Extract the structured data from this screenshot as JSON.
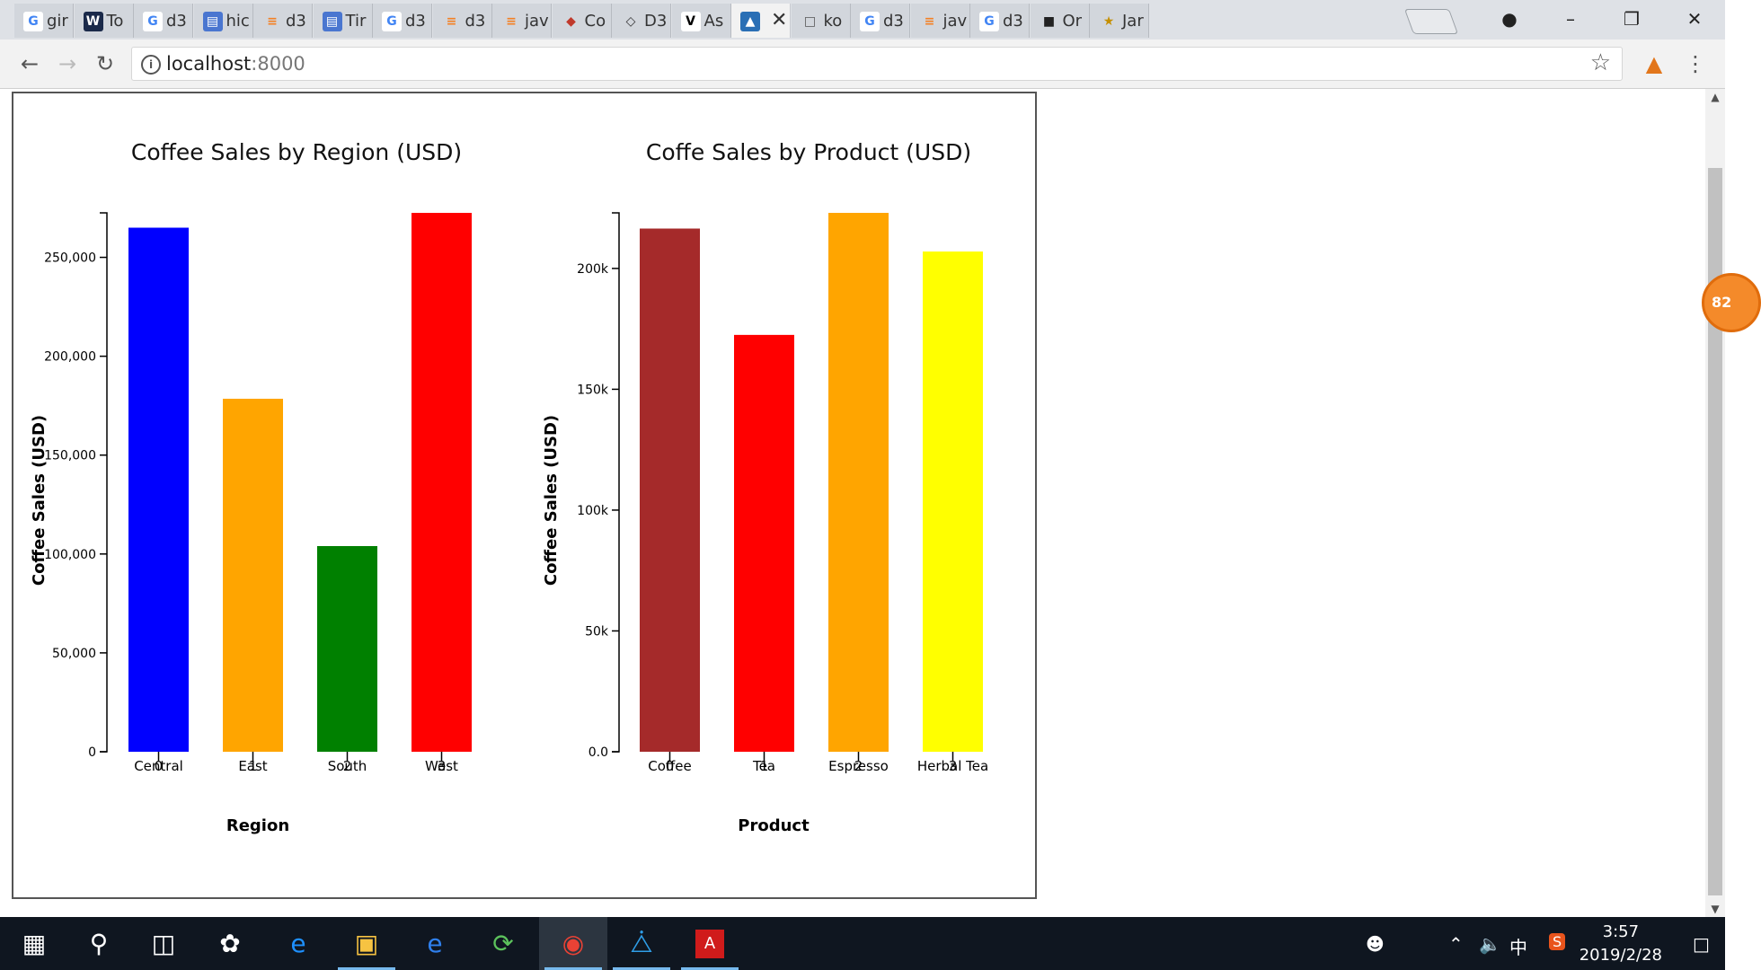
{
  "browser": {
    "tabs": [
      {
        "label": "gir",
        "icon": "google-icon"
      },
      {
        "label": "To",
        "icon": "w-icon"
      },
      {
        "label": "d3",
        "icon": "google-icon"
      },
      {
        "label": "hic",
        "icon": "docs-icon"
      },
      {
        "label": "d3",
        "icon": "stackoverflow-icon"
      },
      {
        "label": "Tir",
        "icon": "docs-icon"
      },
      {
        "label": "d3",
        "icon": "google-icon"
      },
      {
        "label": "d3",
        "icon": "stackoverflow-icon"
      },
      {
        "label": "jav",
        "icon": "stackoverflow-icon"
      },
      {
        "label": "Co",
        "icon": "cube-icon"
      },
      {
        "label": "D3",
        "icon": "d3-icon"
      },
      {
        "label": "As",
        "icon": "vue-icon"
      },
      {
        "label": "",
        "icon": "chart-icon",
        "active": true
      },
      {
        "label": "ko",
        "icon": "file-icon"
      },
      {
        "label": "d3",
        "icon": "google-icon"
      },
      {
        "label": "jav",
        "icon": "stackoverflow-icon"
      },
      {
        "label": "d3",
        "icon": "google-icon"
      },
      {
        "label": "Or",
        "icon": "book-icon"
      },
      {
        "label": "Jar",
        "icon": "bee-icon"
      }
    ],
    "url_host": "localhost",
    "url_port": ":8000",
    "badge": "82"
  },
  "taskbar": {
    "time": "3:57",
    "date": "2019/2/28",
    "ime": "中"
  },
  "chart_data": [
    {
      "type": "bar",
      "title": "Coffee Sales by Region (USD)",
      "xlabel": "Region",
      "ylabel": "Coffee Sales (USD)",
      "categories": [
        "Central",
        "East",
        "South",
        "West"
      ],
      "values": [
        265000,
        178500,
        104000,
        272500
      ],
      "colors": [
        "#0000ff",
        "#ffa500",
        "#008000",
        "#ff0000"
      ],
      "ylim": [
        0,
        272500
      ],
      "yticks": [
        0,
        50000,
        100000,
        150000,
        200000,
        250000
      ],
      "ytick_labels": [
        "0",
        "50,000",
        "100,000",
        "150,000",
        "200,000",
        "250,000"
      ],
      "index_labels": [
        "0",
        "1",
        "2",
        "3"
      ]
    },
    {
      "type": "bar",
      "title": "Coffe Sales by Product (USD)",
      "xlabel": "Product",
      "ylabel": "Coffee Sales (USD)",
      "categories": [
        "Coffee",
        "Tea",
        "Espresso",
        "Herbal Tea"
      ],
      "values": [
        216500,
        172500,
        223000,
        207000
      ],
      "colors": [
        "#a52a2a",
        "#ff0000",
        "#ffa500",
        "#ffff00"
      ],
      "ylim": [
        0,
        223000
      ],
      "yticks": [
        0,
        50000,
        100000,
        150000,
        200000
      ],
      "ytick_labels": [
        "0.0",
        "50k",
        "100k",
        "150k",
        "200k"
      ],
      "index_labels": [
        "0",
        "1",
        "2",
        "3"
      ]
    }
  ]
}
